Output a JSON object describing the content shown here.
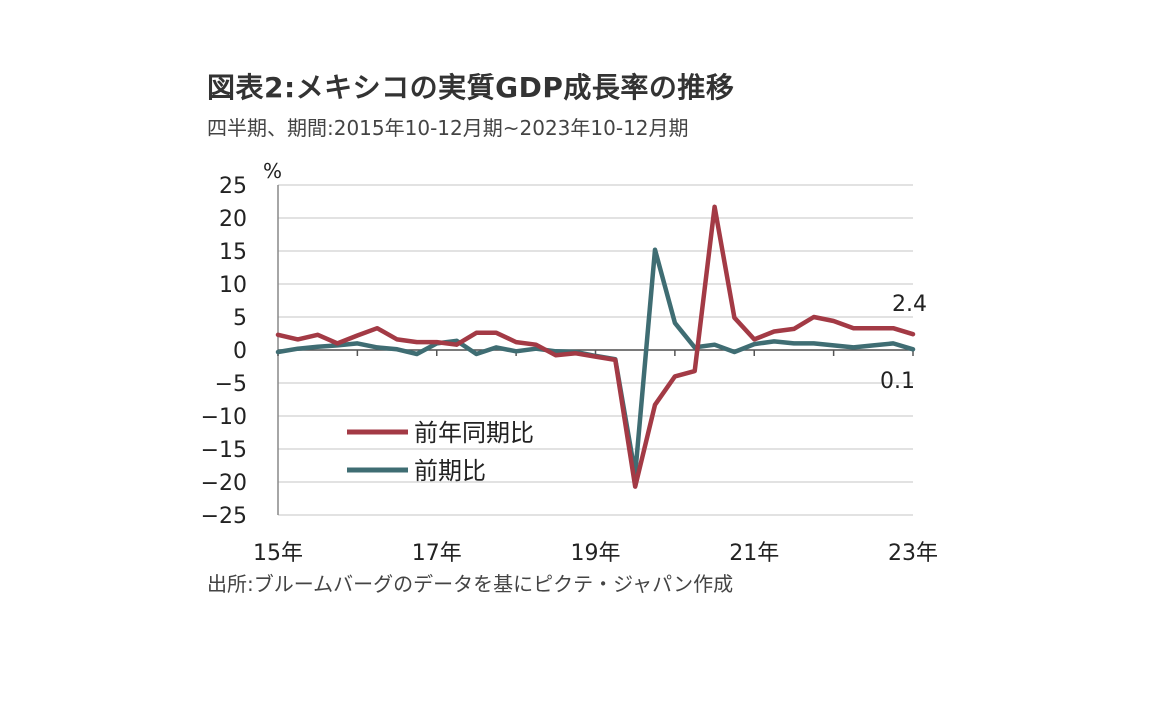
{
  "title": "図表2:メキシコの実質GDP成長率の推移",
  "subtitle": "四半期、期間:2015年10-12月期~2023年10-12月期",
  "source": "出所:ブルームバーグのデータを基にピクテ・ジャパン作成",
  "chart_data": {
    "type": "line",
    "y_unit": "%",
    "ylim": [
      -25,
      25
    ],
    "yticks": [
      25,
      20,
      15,
      10,
      5,
      0,
      -5,
      -10,
      -15,
      -20,
      -25
    ],
    "x_tick_labels": [
      "15年",
      "17年",
      "19年",
      "21年",
      "23年"
    ],
    "grid": true,
    "legend_position": "lower-left",
    "series": [
      {
        "name": "前年同期比",
        "color": "#a33a45",
        "values": [
          2.3,
          1.6,
          2.3,
          1.0,
          2.2,
          3.3,
          1.6,
          1.2,
          1.2,
          0.8,
          2.6,
          2.6,
          1.2,
          0.8,
          -0.8,
          -0.5,
          -1.0,
          -1.5,
          -20.7,
          -8.3,
          -4.0,
          -3.2,
          21.7,
          4.9,
          1.6,
          2.8,
          3.2,
          5.0,
          4.4,
          3.3,
          3.3,
          3.3,
          2.4
        ],
        "end_label": "2.4"
      },
      {
        "name": "前期比",
        "color": "#3f6d73",
        "values": [
          -0.3,
          0.2,
          0.5,
          0.7,
          1.0,
          0.4,
          0.1,
          -0.6,
          1.0,
          1.4,
          -0.6,
          0.4,
          -0.2,
          0.2,
          -0.2,
          -0.3,
          -0.9,
          -1.4,
          -18.8,
          15.2,
          4.1,
          0.4,
          0.8,
          -0.3,
          0.9,
          1.3,
          1.0,
          1.0,
          0.7,
          0.4,
          0.7,
          1.0,
          0.1
        ],
        "end_label": "0.1"
      }
    ]
  }
}
